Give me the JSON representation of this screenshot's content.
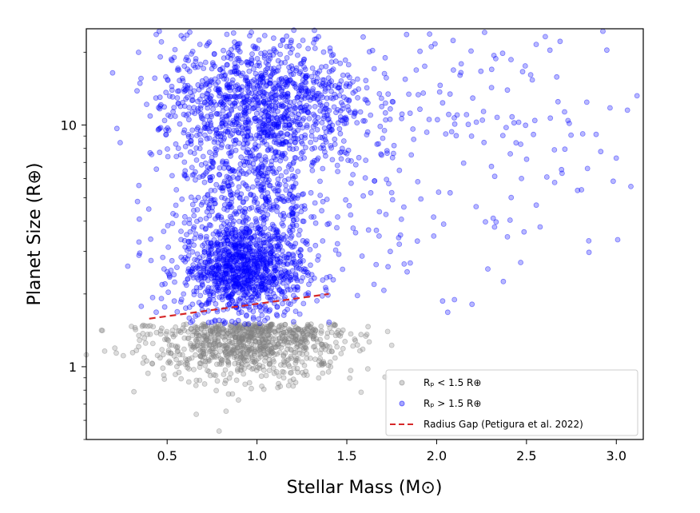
{
  "chart_data": {
    "type": "scatter",
    "title": "",
    "xlabel": "Stellar Mass (M⊙)",
    "ylabel": "Planet Size (R⊕)",
    "xlim": [
      0.05,
      3.15
    ],
    "ylim": [
      0.5,
      25
    ],
    "yscale": "log",
    "grid": false,
    "legend_position": "bottom-right",
    "x_ticks": [
      0.5,
      1.0,
      1.5,
      2.0,
      2.5,
      3.0
    ],
    "x_tick_labels": [
      "0.5",
      "1.0",
      "1.5",
      "2.0",
      "2.5",
      "3.0"
    ],
    "y_ticks": [
      1,
      10
    ],
    "y_tick_labels": [
      "1",
      "10"
    ],
    "series": [
      {
        "name": "Rₚ < 1.5 R⊕",
        "color": "#808080",
        "kind": "scatter",
        "mass_range": [
          0.05,
          1.75
        ],
        "radius_range": [
          0.5,
          1.5
        ]
      },
      {
        "name": "Rₚ > 1.5 R⊕",
        "color": "#0000ff",
        "kind": "scatter",
        "mass_range": [
          0.07,
          3.15
        ],
        "radius_range": [
          1.5,
          25
        ]
      },
      {
        "name": "Radius Gap (Petigura et al. 2022)",
        "color": "#d62728",
        "kind": "line",
        "style": "dashed",
        "x": [
          0.4,
          1.4
        ],
        "y": [
          1.58,
          2.0
        ]
      }
    ]
  }
}
